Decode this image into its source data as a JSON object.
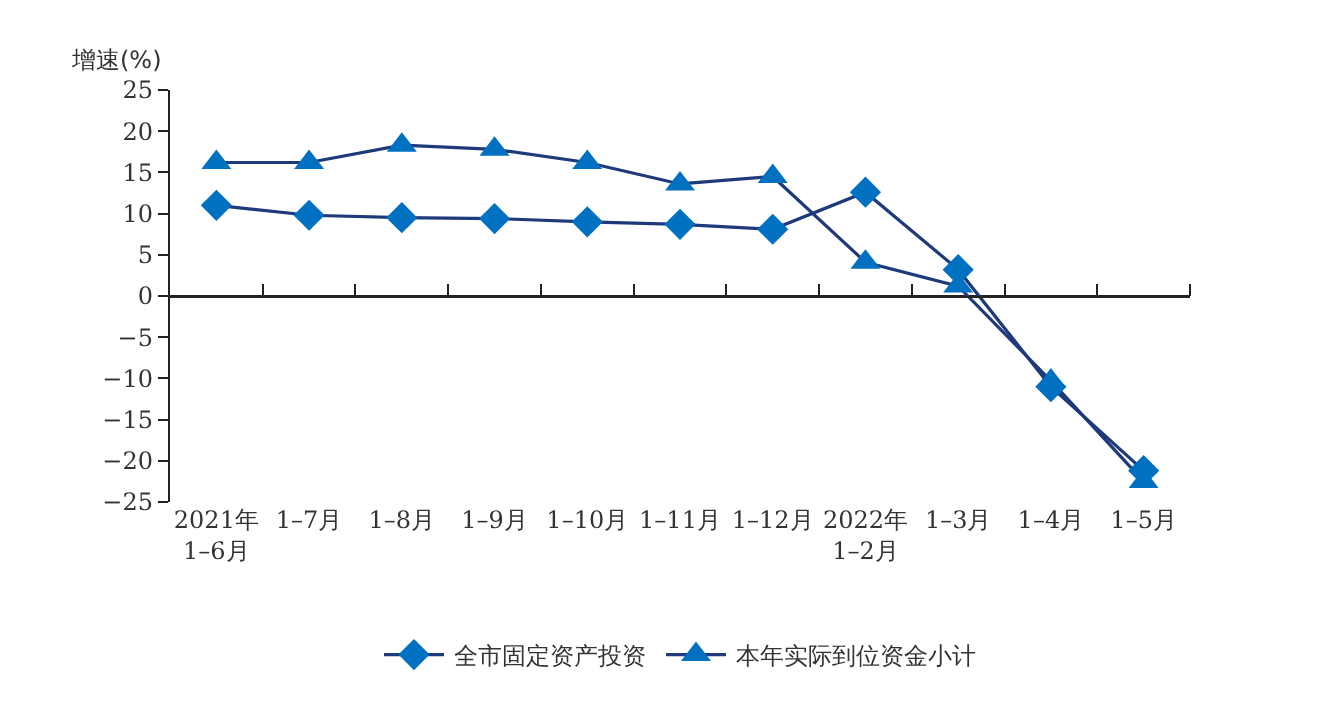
{
  "chart_data": {
    "type": "line",
    "ylabel": "增速(%)",
    "categories": [
      "2021年\n1–6月",
      "1–7月",
      "1–8月",
      "1–9月",
      "1–10月",
      "1–11月",
      "1–12月",
      "2022年\n1–2月",
      "1–3月",
      "1–4月",
      "1–5月"
    ],
    "series": [
      {
        "name": "全市固定资产投资",
        "color": "#0070c0",
        "marker": "diamond",
        "values": [
          11.0,
          9.8,
          9.5,
          9.4,
          9.0,
          8.7,
          8.1,
          12.6,
          3.2,
          -11.0,
          -21.2
        ]
      },
      {
        "name": "本年实际到位资金小计",
        "color": "#0070c0",
        "marker": "triangle",
        "values": [
          16.2,
          16.2,
          18.3,
          17.8,
          16.2,
          13.6,
          14.5,
          4.1,
          1.2,
          -10.3,
          -22.5
        ]
      }
    ],
    "ylim": [
      -25,
      25
    ],
    "yticks": [
      -25,
      -20,
      -15,
      -10,
      -5,
      0,
      5,
      10,
      15,
      20,
      25
    ],
    "legend": "bottom",
    "line_style": "solid"
  }
}
